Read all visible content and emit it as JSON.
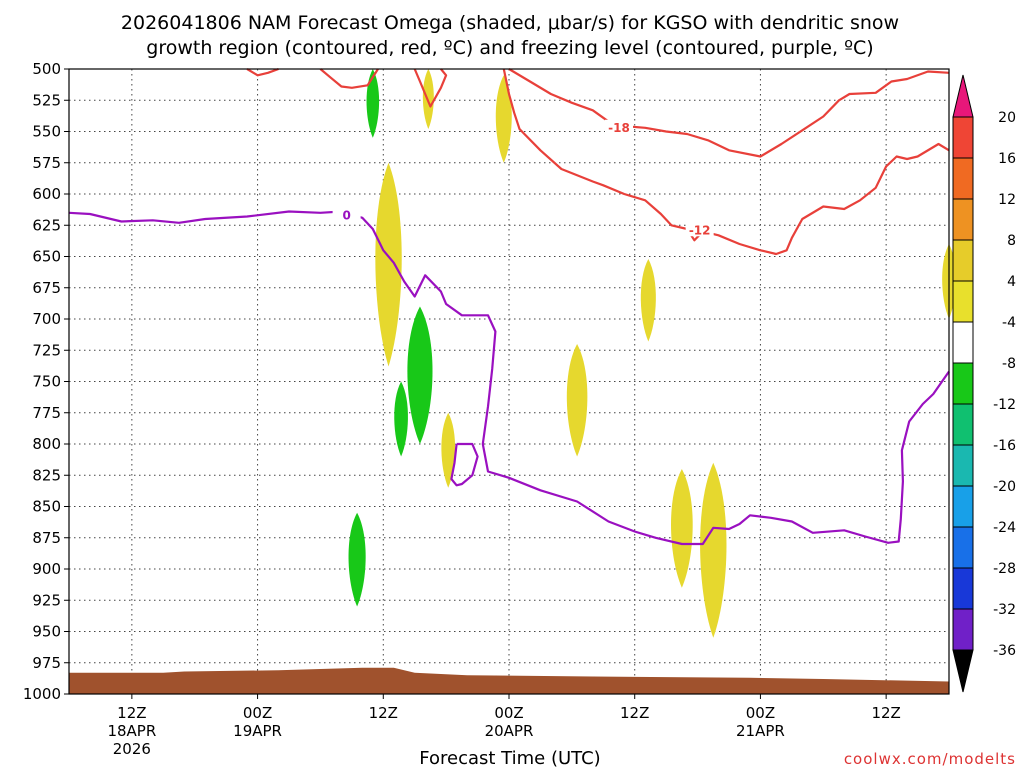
{
  "title_line1": "2026041806 NAM Forecast Omega (shaded, μbar/s) for KGSO with dendritic snow",
  "title_line2": "growth region (contoured, red, ºC) and freezing level (contoured, purple, ºC)",
  "credit": "coolwx.com/modelts",
  "chart_data": {
    "type": "area",
    "title": "2026041806 NAM Forecast Omega (shaded, μbar/s) for KGSO with dendritic snow growth region (contoured, red, ºC) and freezing level (contoured, purple, ºC)",
    "xlabel": "Forecast Time (UTC)",
    "ylabel": "",
    "x_unit": "hours since 2026-04-18 06Z",
    "xlim": [
      0,
      84
    ],
    "ylim": [
      1000,
      500
    ],
    "y_scale": "linear",
    "grid": true,
    "grid_style": "dotted",
    "x_ticks": [
      {
        "x": 6,
        "line1": "12Z",
        "line2": "18APR",
        "line3": "2026"
      },
      {
        "x": 18,
        "line1": "00Z",
        "line2": "19APR",
        "line3": ""
      },
      {
        "x": 30,
        "line1": "12Z",
        "line2": "",
        "line3": ""
      },
      {
        "x": 42,
        "line1": "00Z",
        "line2": "20APR",
        "line3": ""
      },
      {
        "x": 54,
        "line1": "12Z",
        "line2": "",
        "line3": ""
      },
      {
        "x": 66,
        "line1": "00Z",
        "line2": "21APR",
        "line3": ""
      },
      {
        "x": 78,
        "line1": "12Z",
        "line2": "",
        "line3": ""
      }
    ],
    "y_ticks": [
      {
        "value": 500,
        "label": "500"
      },
      {
        "value": 525,
        "label": "525"
      },
      {
        "value": 550,
        "label": "550"
      },
      {
        "value": 575,
        "label": "575"
      },
      {
        "value": 600,
        "label": "600"
      },
      {
        "value": 625,
        "label": "625"
      },
      {
        "value": 650,
        "label": "650"
      },
      {
        "value": 675,
        "label": "675"
      },
      {
        "value": 700,
        "label": "700"
      },
      {
        "value": 725,
        "label": "725"
      },
      {
        "value": 750,
        "label": "750"
      },
      {
        "value": 775,
        "label": "775"
      },
      {
        "value": 800,
        "label": "800"
      },
      {
        "value": 825,
        "label": "825"
      },
      {
        "value": 850,
        "label": "850"
      },
      {
        "value": 875,
        "label": "875"
      },
      {
        "value": 900,
        "label": "900"
      },
      {
        "value": 925,
        "label": "925"
      },
      {
        "value": 950,
        "label": "950"
      },
      {
        "value": 975,
        "label": "975"
      },
      {
        "value": 1000,
        "label": "1000"
      }
    ],
    "colorbar": {
      "labels": [
        "20",
        "16",
        "12",
        "8",
        "4",
        "-4",
        "-8",
        "-12",
        "-16",
        "-20",
        "-24",
        "-28",
        "-32",
        "-36"
      ],
      "colors": [
        "#e8177a",
        "#ef4535",
        "#f06a22",
        "#ee9222",
        "#e6cc2a",
        "#e8e02c",
        "#ffffff",
        "#18c818",
        "#10c070",
        "#1ab8b0",
        "#18a0e8",
        "#1870e8",
        "#1838d8",
        "#7020c8",
        "#9a10c0",
        "#aaaaaa",
        "#000000"
      ]
    },
    "terrain": {
      "color": "#a0522d",
      "points": [
        [
          0,
          983
        ],
        [
          9,
          983
        ],
        [
          11,
          982
        ],
        [
          20,
          981
        ],
        [
          28,
          979
        ],
        [
          31,
          979
        ],
        [
          33,
          983
        ],
        [
          38,
          985
        ],
        [
          50,
          986
        ],
        [
          65,
          987
        ],
        [
          72,
          988
        ],
        [
          84,
          990
        ]
      ]
    },
    "series": [
      {
        "name": "",
        "kind": "contour",
        "color": "#e8403a",
        "label": "-12",
        "label_at": [
          60.2,
          629
        ],
        "points": [
          [
            41.5,
            500
          ],
          [
            42,
            520
          ],
          [
            42.5,
            535
          ],
          [
            43,
            548
          ],
          [
            45,
            565
          ],
          [
            47,
            580
          ],
          [
            50,
            590
          ],
          [
            51,
            593
          ],
          [
            53,
            600
          ],
          [
            55,
            605
          ],
          [
            56.5,
            616
          ],
          [
            57.5,
            625
          ],
          [
            59,
            628
          ],
          [
            59.7,
            637
          ],
          [
            60.5,
            630
          ],
          [
            62,
            633
          ],
          [
            64,
            640
          ],
          [
            66,
            645
          ],
          [
            67.5,
            648
          ],
          [
            68.5,
            645
          ],
          [
            69,
            635
          ],
          [
            70,
            620
          ],
          [
            72,
            610
          ],
          [
            74,
            612
          ],
          [
            75.5,
            605
          ],
          [
            77,
            595
          ],
          [
            78,
            578
          ],
          [
            79,
            570
          ],
          [
            80,
            572
          ],
          [
            81,
            570
          ],
          [
            83,
            560
          ],
          [
            84,
            565
          ]
        ]
      },
      {
        "name": "",
        "kind": "contour",
        "color": "#e8403a",
        "label": "-18",
        "label_at": [
          52.5,
          547
        ],
        "points": [
          [
            42,
            500
          ],
          [
            44,
            510
          ],
          [
            46,
            520
          ],
          [
            48,
            527
          ],
          [
            50,
            533
          ],
          [
            52,
            545
          ],
          [
            55,
            547
          ],
          [
            57,
            550
          ],
          [
            59,
            552
          ],
          [
            61,
            557
          ],
          [
            63,
            565
          ],
          [
            66,
            570
          ],
          [
            68,
            560
          ],
          [
            70,
            549
          ],
          [
            72,
            538
          ],
          [
            73.5,
            525
          ],
          [
            74.5,
            520
          ],
          [
            77,
            519
          ],
          [
            78.5,
            510
          ],
          [
            80,
            508
          ],
          [
            82,
            502
          ],
          [
            84,
            503
          ]
        ]
      },
      {
        "name": "",
        "kind": "contour",
        "color": "#e8403a",
        "label": "",
        "label_at": null,
        "points": [
          [
            17,
            500
          ],
          [
            18,
            505
          ],
          [
            19,
            503
          ],
          [
            20,
            500
          ]
        ]
      },
      {
        "name": "",
        "kind": "contour",
        "color": "#e8403a",
        "label": "",
        "label_at": null,
        "points": [
          [
            24,
            500
          ],
          [
            25,
            507
          ],
          [
            26,
            514
          ],
          [
            27,
            515
          ],
          [
            28.5,
            513
          ],
          [
            29.5,
            500
          ]
        ]
      },
      {
        "name": "",
        "kind": "contour",
        "color": "#e8403a",
        "label": "",
        "label_at": null,
        "points": [
          [
            33,
            500
          ],
          [
            33.5,
            510
          ],
          [
            34.5,
            530
          ],
          [
            35.5,
            515
          ],
          [
            36,
            505
          ],
          [
            35.5,
            500
          ]
        ]
      },
      {
        "name": "",
        "kind": "contour",
        "color": "#9a10c0",
        "label": "0",
        "label_at": [
          26.5,
          617
        ],
        "points": [
          [
            0,
            615
          ],
          [
            2,
            616
          ],
          [
            5,
            622
          ],
          [
            8,
            621
          ],
          [
            10.5,
            623
          ],
          [
            13,
            620
          ],
          [
            17,
            618
          ],
          [
            21,
            614
          ],
          [
            24,
            615
          ],
          [
            26,
            614
          ],
          [
            28,
            619
          ],
          [
            29,
            628
          ],
          [
            30,
            645
          ],
          [
            31,
            655
          ],
          [
            32,
            670
          ],
          [
            33,
            682
          ],
          [
            34,
            665
          ],
          [
            35.5,
            678
          ],
          [
            36,
            688
          ],
          [
            37.5,
            697
          ],
          [
            40,
            697
          ],
          [
            40.7,
            710
          ],
          [
            40.4,
            740
          ],
          [
            40,
            770
          ],
          [
            39.5,
            800
          ],
          [
            40,
            822
          ],
          [
            42,
            827
          ],
          [
            45,
            837
          ],
          [
            48.5,
            846
          ],
          [
            51.5,
            862
          ],
          [
            54,
            870
          ],
          [
            56,
            875
          ],
          [
            58.5,
            880
          ],
          [
            60.5,
            880
          ],
          [
            61.5,
            867
          ],
          [
            63,
            868
          ],
          [
            64,
            864
          ],
          [
            65,
            857
          ],
          [
            67,
            859
          ],
          [
            69,
            862
          ],
          [
            71,
            871
          ],
          [
            74,
            869
          ],
          [
            76,
            874
          ],
          [
            78.2,
            879
          ],
          [
            79.2,
            878
          ],
          [
            79.4,
            860
          ],
          [
            79.6,
            830
          ],
          [
            79.5,
            805
          ],
          [
            80.2,
            782
          ],
          [
            81.5,
            768
          ],
          [
            82.5,
            760
          ],
          [
            84,
            742
          ]
        ]
      },
      {
        "name": "",
        "kind": "contour",
        "color": "#9a10c0",
        "label": "",
        "label_at": null,
        "points": [
          [
            37,
            800
          ],
          [
            38.5,
            800
          ],
          [
            39,
            810
          ],
          [
            38.5,
            825
          ],
          [
            37.5,
            832
          ],
          [
            37,
            833
          ],
          [
            36.5,
            828
          ],
          [
            36.8,
            815
          ],
          [
            37,
            800
          ]
        ]
      }
    ],
    "shaded_regions": [
      {
        "omega": 4,
        "color": "#e6d82e",
        "x_center": 34.3,
        "p_top": 500,
        "p_bottom": 548
      },
      {
        "omega": 4,
        "color": "#e6d82e",
        "x_center": 41.5,
        "p_top": 505,
        "p_bottom": 575
      },
      {
        "omega": 4,
        "color": "#e6d82e",
        "x_center": 30.5,
        "p_top": 575,
        "p_bottom": 738
      },
      {
        "omega": 4,
        "color": "#e6d82e",
        "x_center": 36.2,
        "p_top": 775,
        "p_bottom": 835
      },
      {
        "omega": 4,
        "color": "#e6d82e",
        "x_center": 48.5,
        "p_top": 720,
        "p_bottom": 810
      },
      {
        "omega": 4,
        "color": "#e6d82e",
        "x_center": 55.3,
        "p_top": 652,
        "p_bottom": 718
      },
      {
        "omega": 4,
        "color": "#e6d82e",
        "x_center": 58.5,
        "p_top": 820,
        "p_bottom": 915
      },
      {
        "omega": 4,
        "color": "#e6d82e",
        "x_center": 61.5,
        "p_top": 815,
        "p_bottom": 955
      },
      {
        "omega": 4,
        "color": "#e6d82e",
        "x_center": 84,
        "p_top": 640,
        "p_bottom": 700
      },
      {
        "omega": -4,
        "color": "#18c818",
        "x_center": 29,
        "p_top": 500,
        "p_bottom": 555
      },
      {
        "omega": -4,
        "color": "#18c818",
        "x_center": 33.5,
        "p_top": 690,
        "p_bottom": 800
      },
      {
        "omega": -4,
        "color": "#18c818",
        "x_center": 31.7,
        "p_top": 750,
        "p_bottom": 810
      },
      {
        "omega": -4,
        "color": "#18c818",
        "x_center": 27.5,
        "p_top": 855,
        "p_bottom": 930
      }
    ]
  }
}
